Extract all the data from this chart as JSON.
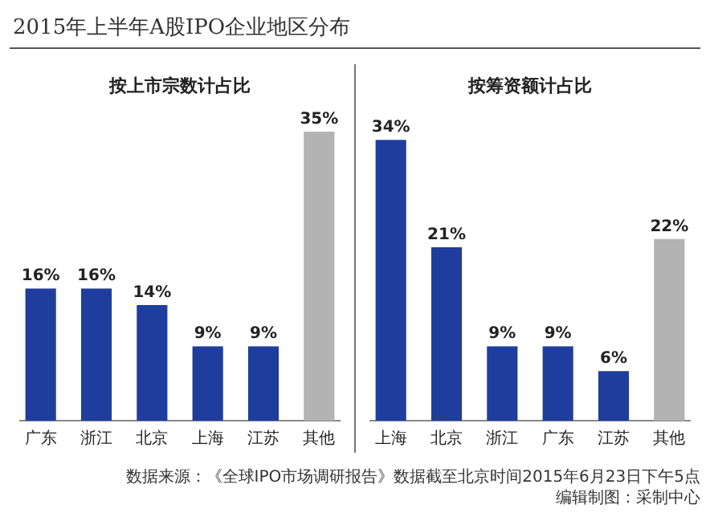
{
  "chart_data": [
    {
      "type": "other",
      "title": "2015年上半年A股IPO企业地区分布",
      "annotations": [
        "数据来源：《全球IPO市场调研报告》数据截至北京时间2015年6月23日下午5点",
        "编辑制图：采制中心"
      ]
    },
    {
      "type": "bar",
      "title": "按上市宗数计占比",
      "categories": [
        "广东",
        "浙江",
        "北京",
        "上海",
        "江苏",
        "其他"
      ],
      "values": [
        16,
        16,
        14,
        9,
        9,
        35
      ],
      "colors": [
        "#1f3d9c",
        "#1f3d9c",
        "#1f3d9c",
        "#1f3d9c",
        "#1f3d9c",
        "#b3b3b3"
      ],
      "value_labels": [
        "16%",
        "16%",
        "14%",
        "9%",
        "9%",
        "35%"
      ]
    },
    {
      "type": "bar",
      "title": "按筹资额计占比",
      "categories": [
        "上海",
        "北京",
        "浙江",
        "广东",
        "江苏",
        "其他"
      ],
      "values": [
        34,
        21,
        9,
        9,
        6,
        22
      ],
      "colors": [
        "#1f3d9c",
        "#1f3d9c",
        "#1f3d9c",
        "#1f3d9c",
        "#1f3d9c",
        "#b3b3b3"
      ],
      "value_labels": [
        "34%",
        "21%",
        "9%",
        "9%",
        "6%",
        "22%"
      ]
    }
  ]
}
